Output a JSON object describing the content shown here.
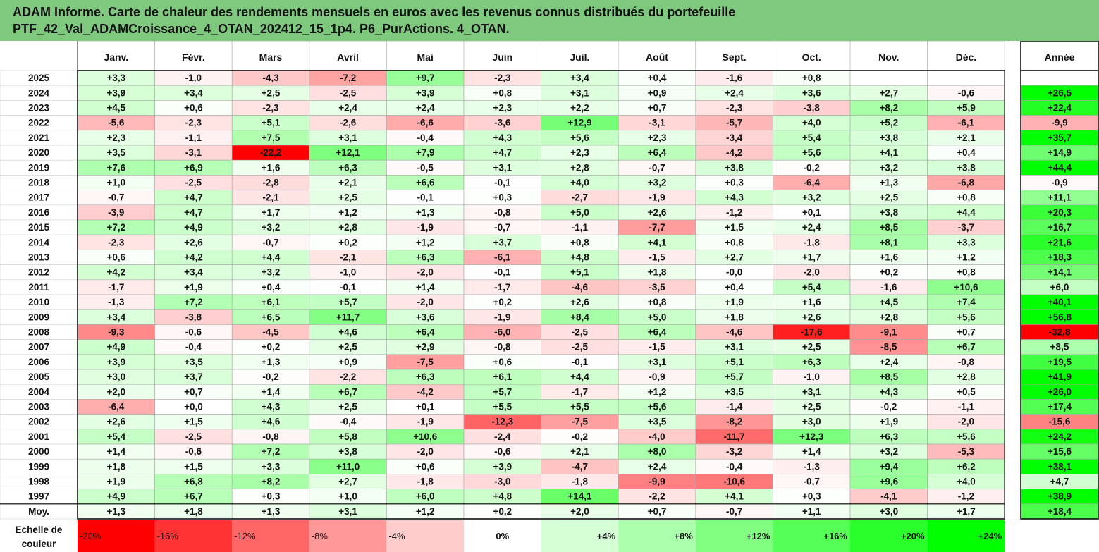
{
  "title_line1": "ADAM Informe. Carte de chaleur des rendements mensuels en euros avec les revenus connus distribués du portefeuille",
  "title_line2": "PTF_42_Val_ADAMCroissance_4_OTAN_202412_15_1p4. P6_PurActions. 4_OTAN.",
  "chart_data": {
    "type": "heatmap",
    "columns": [
      "Janv.",
      "Févr.",
      "Mars",
      "Avril",
      "Mai",
      "Juin",
      "Juil.",
      "Août",
      "Sept.",
      "Oct.",
      "Nov.",
      "Déc."
    ],
    "year_column": "Année",
    "rows": [
      {
        "label": "2025",
        "values": [
          "+3,3",
          "-1,0",
          "-4,3",
          "-7,2",
          "+9,7",
          "-2,3",
          "+3,4",
          "+0,4",
          "-1,6",
          "+0,8",
          "",
          ""
        ],
        "year": ""
      },
      {
        "label": "2024",
        "values": [
          "+3,9",
          "+3,4",
          "+2,5",
          "-2,5",
          "+3,9",
          "+0,8",
          "+3,1",
          "+0,9",
          "+2,4",
          "+3,6",
          "+2,7",
          "-0,6"
        ],
        "year": "+26,5"
      },
      {
        "label": "2023",
        "values": [
          "+4,5",
          "+0,6",
          "-2,3",
          "+2,4",
          "+2,4",
          "+2,3",
          "+2,2",
          "+0,7",
          "-2,3",
          "-3,8",
          "+8,2",
          "+5,9"
        ],
        "year": "+22,4"
      },
      {
        "label": "2022",
        "values": [
          "-5,6",
          "-2,3",
          "+5,1",
          "-2,6",
          "-6,6",
          "-3,6",
          "+12,9",
          "-3,1",
          "-5,7",
          "+4,0",
          "+5,2",
          "-6,1"
        ],
        "year": "-9,9"
      },
      {
        "label": "2021",
        "values": [
          "+2,3",
          "-1,1",
          "+7,5",
          "+3,1",
          "-0,4",
          "+4,3",
          "+5,6",
          "+2,3",
          "-3,4",
          "+5,4",
          "+3,8",
          "+2,1"
        ],
        "year": "+35,7"
      },
      {
        "label": "2020",
        "values": [
          "+3,5",
          "-3,1",
          "-22,2",
          "+12,1",
          "+7,9",
          "+4,7",
          "+2,3",
          "+6,4",
          "-4,2",
          "+5,6",
          "+4,1",
          "+0,4"
        ],
        "year": "+14,9"
      },
      {
        "label": "2019",
        "values": [
          "+7,6",
          "+6,9",
          "+1,6",
          "+6,3",
          "-0,5",
          "+3,1",
          "+2,8",
          "-0,7",
          "+3,8",
          "-0,2",
          "+3,2",
          "+3,8"
        ],
        "year": "+44,4"
      },
      {
        "label": "2018",
        "values": [
          "+1,0",
          "-2,5",
          "-2,8",
          "+2,1",
          "+6,6",
          "-0,1",
          "+4,0",
          "+3,2",
          "+0,3",
          "-6,4",
          "+1,3",
          "-6,8"
        ],
        "year": "-0,9"
      },
      {
        "label": "2017",
        "values": [
          "-0,7",
          "+4,7",
          "-2,1",
          "+2,5",
          "-0,1",
          "+0,3",
          "-2,7",
          "-1,9",
          "+4,3",
          "+3,2",
          "+2,5",
          "+0,8"
        ],
        "year": "+11,1"
      },
      {
        "label": "2016",
        "values": [
          "-3,9",
          "+4,7",
          "+1,7",
          "+1,2",
          "+1,3",
          "-0,8",
          "+5,0",
          "+2,6",
          "-1,2",
          "+0,1",
          "+3,8",
          "+4,4"
        ],
        "year": "+20,3"
      },
      {
        "label": "2015",
        "values": [
          "+7,2",
          "+4,9",
          "+3,2",
          "+2,8",
          "-1,9",
          "-0,7",
          "-1,1",
          "-7,7",
          "+1,5",
          "+2,4",
          "+8,5",
          "-3,7"
        ],
        "year": "+16,7"
      },
      {
        "label": "2014",
        "values": [
          "-2,3",
          "+2,6",
          "-0,7",
          "+0,2",
          "+1,2",
          "+3,7",
          "+0,8",
          "+4,1",
          "+0,8",
          "-1,8",
          "+8,1",
          "+3,3"
        ],
        "year": "+21,6"
      },
      {
        "label": "2013",
        "values": [
          "+0,6",
          "+4,2",
          "+4,4",
          "-2,1",
          "+6,3",
          "-6,1",
          "+4,8",
          "-1,5",
          "+2,7",
          "+1,7",
          "+1,6",
          "+1,2"
        ],
        "year": "+18,3"
      },
      {
        "label": "2012",
        "values": [
          "+4,2",
          "+3,4",
          "+3,2",
          "-1,0",
          "-2,0",
          "-0,1",
          "+5,1",
          "+1,8",
          "-0,0",
          "-2,0",
          "+0,2",
          "+0,8"
        ],
        "year": "+14,1"
      },
      {
        "label": "2011",
        "values": [
          "-1,7",
          "+1,9",
          "+0,4",
          "-0,1",
          "+1,4",
          "-1,7",
          "-4,6",
          "-3,5",
          "+0,4",
          "+5,4",
          "-1,6",
          "+10,6"
        ],
        "year": "+6,0"
      },
      {
        "label": "2010",
        "values": [
          "-1,3",
          "+7,2",
          "+6,1",
          "+5,7",
          "-2,0",
          "+0,2",
          "+2,6",
          "+0,8",
          "+1,9",
          "+1,6",
          "+4,5",
          "+7,4"
        ],
        "year": "+40,1"
      },
      {
        "label": "2009",
        "values": [
          "+3,4",
          "-3,8",
          "+6,5",
          "+11,7",
          "+3,6",
          "-1,9",
          "+8,4",
          "+5,0",
          "+1,8",
          "+2,6",
          "+2,8",
          "+5,6"
        ],
        "year": "+56,8"
      },
      {
        "label": "2008",
        "values": [
          "-9,3",
          "-0,6",
          "-4,5",
          "+4,6",
          "+6,4",
          "-6,0",
          "-2,5",
          "+6,4",
          "-4,6",
          "-17,6",
          "-9,1",
          "+0,7"
        ],
        "year": "-32,8"
      },
      {
        "label": "2007",
        "values": [
          "+4,9",
          "-0,4",
          "+0,2",
          "+2,5",
          "+2,9",
          "-0,8",
          "-2,5",
          "-1,5",
          "+3,1",
          "+2,5",
          "-8,5",
          "+6,7"
        ],
        "year": "+8,5"
      },
      {
        "label": "2006",
        "values": [
          "+3,9",
          "+3,5",
          "+1,3",
          "+0,9",
          "-7,5",
          "+0,6",
          "-0,1",
          "+3,1",
          "+5,1",
          "+6,3",
          "+2,4",
          "-0,8"
        ],
        "year": "+19,5"
      },
      {
        "label": "2005",
        "values": [
          "+3,0",
          "+3,7",
          "-0,2",
          "-2,2",
          "+6,3",
          "+6,1",
          "+4,4",
          "-0,9",
          "+5,7",
          "-1,0",
          "+8,5",
          "+2,8"
        ],
        "year": "+41,9"
      },
      {
        "label": "2004",
        "values": [
          "+2,0",
          "+0,7",
          "+1,4",
          "+6,7",
          "-4,2",
          "+5,7",
          "-1,7",
          "+1,2",
          "+3,5",
          "+3,1",
          "+4,3",
          "+0,5"
        ],
        "year": "+26,0"
      },
      {
        "label": "2003",
        "values": [
          "-6,4",
          "+0,0",
          "+4,3",
          "+2,5",
          "+0,1",
          "+5,5",
          "+5,5",
          "+5,6",
          "-1,4",
          "+2,5",
          "-0,2",
          "-1,1"
        ],
        "year": "+17,4"
      },
      {
        "label": "2002",
        "values": [
          "+2,6",
          "+1,5",
          "+4,6",
          "-0,4",
          "-1,9",
          "-12,3",
          "-7,5",
          "+3,5",
          "-8,2",
          "+3,0",
          "+1,9",
          "-2,0"
        ],
        "year": "-15,6"
      },
      {
        "label": "2001",
        "values": [
          "+5,4",
          "-2,5",
          "-0,8",
          "+5,8",
          "+10,6",
          "-2,4",
          "-0,2",
          "-4,0",
          "-11,7",
          "+12,3",
          "+6,3",
          "+5,6"
        ],
        "year": "+24,2"
      },
      {
        "label": "2000",
        "values": [
          "+1,4",
          "-0,6",
          "+7,2",
          "+3,8",
          "-2,0",
          "-0,6",
          "+2,1",
          "+8,0",
          "-3,2",
          "+1,4",
          "+3,2",
          "-5,3"
        ],
        "year": "+15,6"
      },
      {
        "label": "1999",
        "values": [
          "+1,8",
          "+1,5",
          "+3,3",
          "+11,0",
          "+0,6",
          "+3,9",
          "-4,7",
          "+2,4",
          "-0,4",
          "-1,3",
          "+9,4",
          "+6,2"
        ],
        "year": "+38,1"
      },
      {
        "label": "1998",
        "values": [
          "+1,9",
          "+6,8",
          "+8,2",
          "+2,7",
          "-1,8",
          "-3,0",
          "-1,8",
          "-9,9",
          "-10,6",
          "-0,7",
          "+9,6",
          "+4,0"
        ],
        "year": "+4,7"
      },
      {
        "label": "1997",
        "values": [
          "+4,9",
          "+6,7",
          "+0,3",
          "+1,0",
          "+6,0",
          "+4,8",
          "+14,1",
          "-2,2",
          "+4,1",
          "+0,3",
          "-4,1",
          "-1,2"
        ],
        "year": "+38,9"
      }
    ],
    "average_row": {
      "label": "Moy.",
      "values": [
        "+1,3",
        "+1,8",
        "+1,3",
        "+3,1",
        "+1,2",
        "+0,2",
        "+2,0",
        "+0,7",
        "-0,7",
        "+1,1",
        "+3,0",
        "+1,7"
      ],
      "year": "+18,4"
    },
    "scale_label": "Echelle de couleur",
    "scale": [
      "-20%",
      "-16%",
      "-12%",
      "-8%",
      "-4%",
      "0%",
      "+4%",
      "+8%",
      "+12%",
      "+16%",
      "+20%",
      "+24%"
    ],
    "colors": {
      "negative_max": "#ff0000",
      "zero": "#ffffff",
      "positive_max": "#00ff00",
      "title_bg": "#7fc97f"
    }
  }
}
